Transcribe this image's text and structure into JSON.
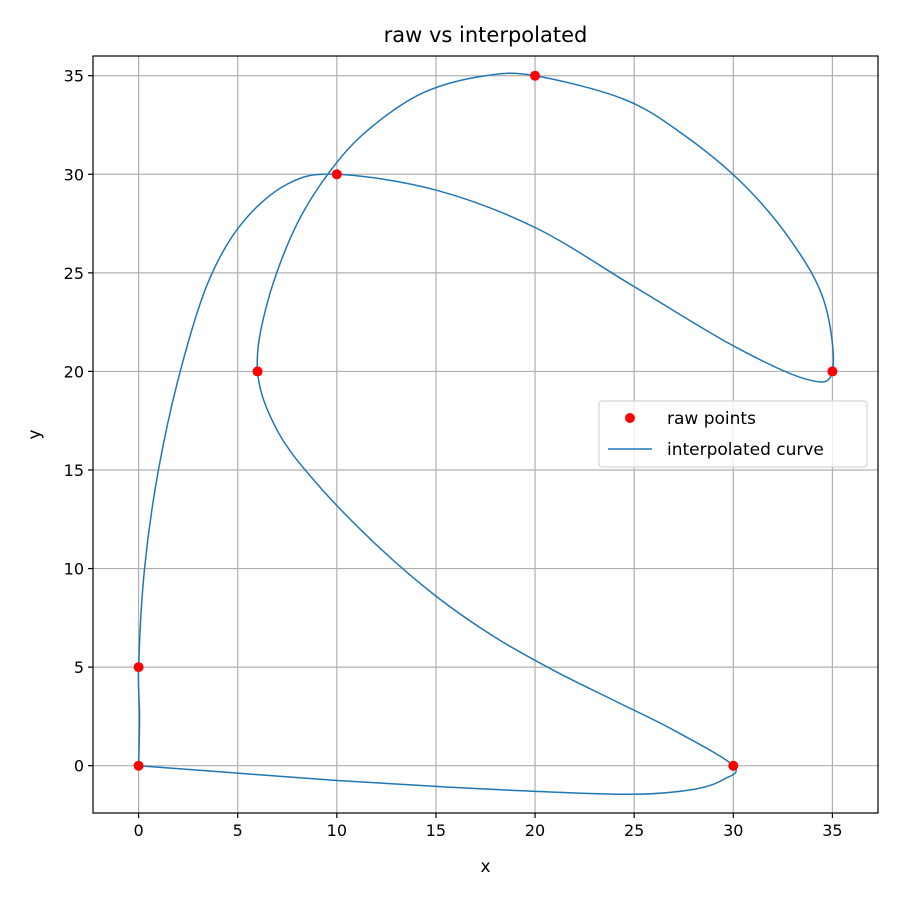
{
  "chart_data": {
    "type": "line",
    "title": "raw vs interpolated",
    "xlabel": "x",
    "ylabel": "y",
    "xlim": [
      -2.3,
      37.3
    ],
    "ylim": [
      -2.4,
      36.0
    ],
    "xticks": [
      0,
      5,
      10,
      15,
      20,
      25,
      30,
      35
    ],
    "yticks": [
      0,
      5,
      10,
      15,
      20,
      25,
      30,
      35
    ],
    "grid": true,
    "legend_position": "center-right",
    "series": [
      {
        "name": "raw points",
        "kind": "scatter",
        "color": "#ff0000",
        "points": [
          [
            0,
            0
          ],
          [
            0,
            5
          ],
          [
            6,
            20
          ],
          [
            10,
            30
          ],
          [
            20,
            35
          ],
          [
            35,
            20
          ],
          [
            30,
            0
          ]
        ]
      },
      {
        "name": "interpolated curve",
        "kind": "line",
        "color": "#1f77b4",
        "points": [
          [
            0,
            0
          ],
          [
            0.05,
            2.5
          ],
          [
            0,
            5
          ],
          [
            0.3,
            10
          ],
          [
            1.0,
            15
          ],
          [
            2.1,
            20
          ],
          [
            3.5,
            24.5
          ],
          [
            5.2,
            27.5
          ],
          [
            7.5,
            29.5
          ],
          [
            10,
            30
          ],
          [
            15,
            29.2
          ],
          [
            20,
            27.3
          ],
          [
            25,
            24.3
          ],
          [
            30,
            21.3
          ],
          [
            33.7,
            19.6
          ],
          [
            35,
            20
          ],
          [
            34.6,
            23.5
          ],
          [
            33,
            26.5
          ],
          [
            30.5,
            29.5
          ],
          [
            27.5,
            32.0
          ],
          [
            24.5,
            33.8
          ],
          [
            20,
            35
          ],
          [
            17.5,
            35.0
          ],
          [
            14.5,
            34.2
          ],
          [
            12.0,
            32.6
          ],
          [
            10,
            30.6
          ],
          [
            8.0,
            27.5
          ],
          [
            6.5,
            23.5
          ],
          [
            6,
            20
          ],
          [
            7,
            17.0
          ],
          [
            9,
            14.3
          ],
          [
            12,
            11.2
          ],
          [
            15,
            8.6
          ],
          [
            18,
            6.5
          ],
          [
            21,
            4.8
          ],
          [
            24,
            3.3
          ],
          [
            27,
            1.8
          ],
          [
            30,
            0
          ],
          [
            29.5,
            -0.7
          ],
          [
            28,
            -1.2
          ],
          [
            25,
            -1.45
          ],
          [
            20,
            -1.3
          ],
          [
            15,
            -1.05
          ],
          [
            10,
            -0.75
          ],
          [
            5,
            -0.38
          ],
          [
            0,
            0
          ]
        ]
      }
    ]
  }
}
